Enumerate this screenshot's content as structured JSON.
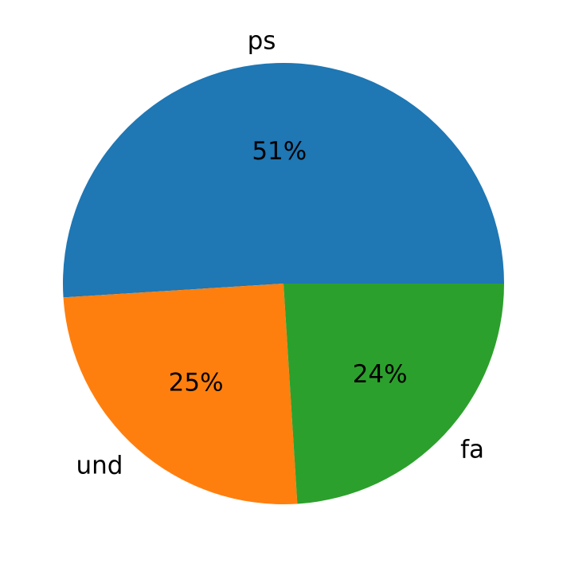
{
  "chart_data": {
    "type": "pie",
    "categories": [
      "ps",
      "und",
      "fa"
    ],
    "values": [
      51,
      25,
      24
    ],
    "value_labels": [
      "51%",
      "25%",
      "24%"
    ],
    "colors": [
      "#1f77b4",
      "#ff7f0e",
      "#2ca02c"
    ],
    "start_angle": 0
  }
}
